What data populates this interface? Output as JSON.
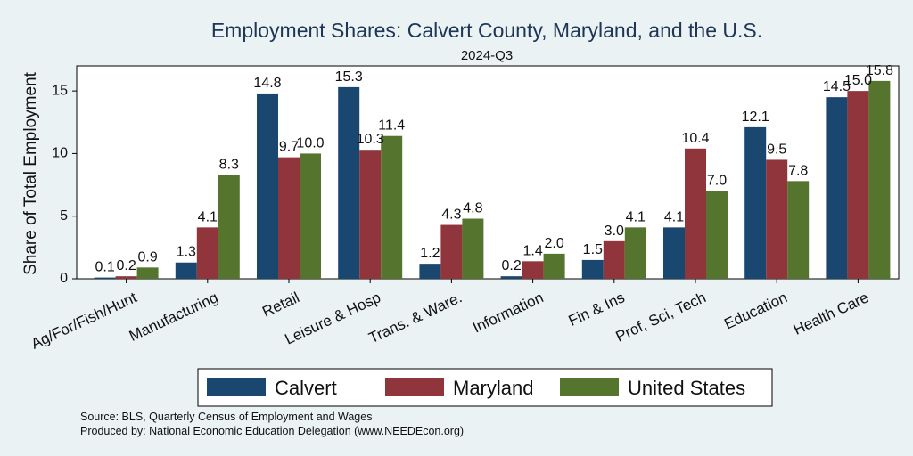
{
  "chart_data": {
    "type": "bar",
    "title": "Employment Shares: Calvert County, Maryland, and the U.S.",
    "subtitle": "2024-Q3",
    "ylabel": "Share of Total Employment",
    "xlabel": "",
    "ylim": [
      0,
      17
    ],
    "yticks": [
      0,
      5,
      10,
      15
    ],
    "grid": false,
    "legend_position": "bottom",
    "categories": [
      "Ag/For/Fish/Hunt",
      "Manufacturing",
      "Retail",
      "Leisure & Hosp",
      "Trans. & Ware.",
      "Information",
      "Fin & Ins",
      "Prof, Sci, Tech",
      "Education",
      "Health Care"
    ],
    "series": [
      {
        "name": "Calvert",
        "color": "#1a476f",
        "values": [
          0.1,
          1.3,
          14.8,
          15.3,
          1.2,
          0.2,
          1.5,
          4.1,
          12.1,
          14.5
        ]
      },
      {
        "name": "Maryland",
        "color": "#90353b",
        "values": [
          0.2,
          4.1,
          9.7,
          10.3,
          4.3,
          1.4,
          3.0,
          10.4,
          9.5,
          15.0
        ]
      },
      {
        "name": "United States",
        "color": "#55752f",
        "values": [
          0.9,
          8.3,
          10.0,
          11.4,
          4.8,
          2.0,
          4.1,
          7.0,
          7.8,
          15.8
        ]
      }
    ],
    "notes": [
      "Source: BLS, Quarterly Census of Employment and Wages",
      "Produced by: National Economic Education Delegation (www.NEEDEcon.org)"
    ]
  }
}
